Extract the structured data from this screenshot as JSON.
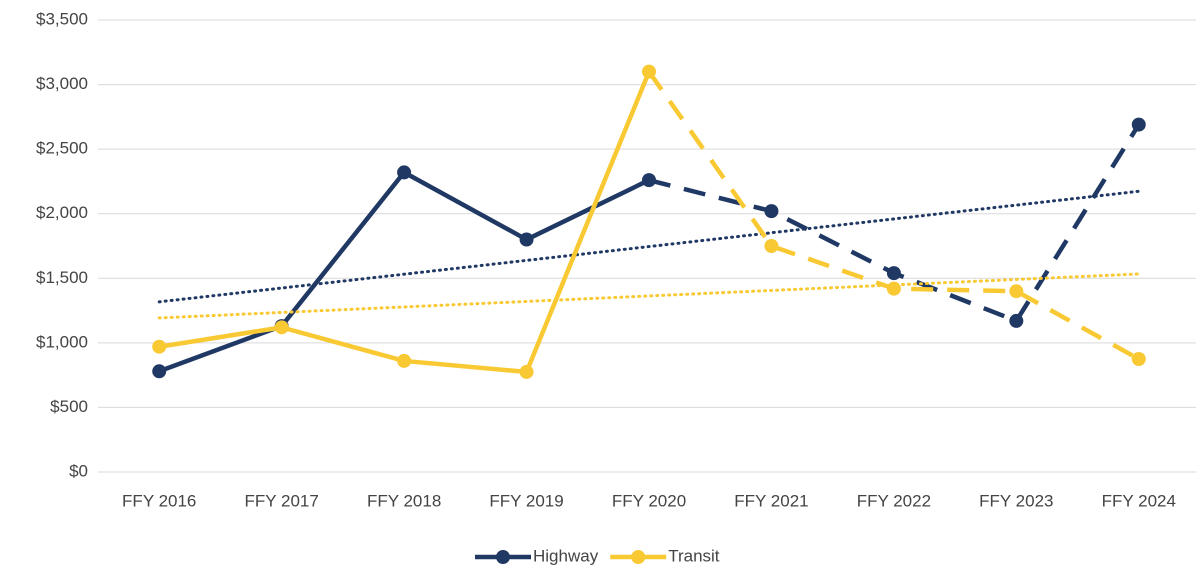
{
  "chart_data": {
    "type": "line",
    "categories": [
      "FFY 2016",
      "FFY 2017",
      "FFY 2018",
      "FFY 2019",
      "FFY 2020",
      "FFY 2021",
      "FFY 2022",
      "FFY 2023",
      "FFY 2024"
    ],
    "series": [
      {
        "name": "Highway",
        "color": "#203864",
        "values": [
          780,
          1130,
          2320,
          1800,
          2260,
          2020,
          1540,
          1170,
          2690
        ]
      },
      {
        "name": "Transit",
        "color": "#f9c934",
        "values": [
          970,
          1120,
          860,
          775,
          3100,
          1750,
          1420,
          1400,
          875
        ]
      }
    ],
    "dashed_from_index": 4,
    "trendline": true,
    "ylim": [
      0,
      3500
    ],
    "yticks": [
      {
        "value": 0,
        "label": "$0"
      },
      {
        "value": 500,
        "label": "$500"
      },
      {
        "value": 1000,
        "label": "$1,000"
      },
      {
        "value": 1500,
        "label": "$1,500"
      },
      {
        "value": 2000,
        "label": "$2,000"
      },
      {
        "value": 2500,
        "label": "$2,500"
      },
      {
        "value": 3000,
        "label": "$3,000"
      },
      {
        "value": 3500,
        "label": "$3,500"
      }
    ],
    "grid": true,
    "legend": "bottom"
  }
}
